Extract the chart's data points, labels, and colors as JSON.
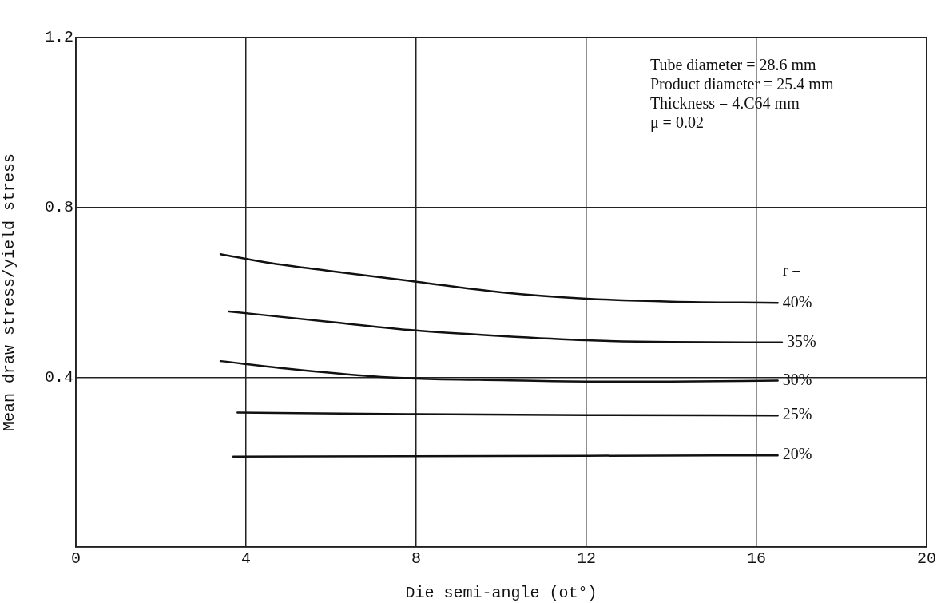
{
  "chart_data": {
    "type": "line",
    "xlabel": "Die semi-angle (ot°)",
    "ylabel": "Mean draw stress/yield stress",
    "xlim": [
      0,
      20
    ],
    "xticks": [
      0,
      4,
      8,
      12,
      16,
      20
    ],
    "ylim": [
      0,
      1.2
    ],
    "yticks": [
      0.4,
      0.8,
      1.2
    ],
    "grid": true,
    "legend": false,
    "marker": "none",
    "line_style": "solid",
    "annotations": [
      "Tube diameter = 28.6 mm",
      "Product diameter = 25.4 mm",
      "Thickness = 4.C64 mm",
      "μ = 0.02",
      "r ="
    ],
    "series": [
      {
        "name": "40%",
        "color": "#111111",
        "x": [
          3.4,
          4.5,
          6,
          8,
          10,
          12,
          14,
          16.5
        ],
        "values": [
          0.69,
          0.67,
          0.65,
          0.625,
          0.6,
          0.585,
          0.578,
          0.575
        ]
      },
      {
        "name": "35%",
        "color": "#111111",
        "x": [
          3.6,
          6,
          8,
          10,
          12,
          14,
          16.6
        ],
        "values": [
          0.555,
          0.53,
          0.51,
          0.497,
          0.487,
          0.483,
          0.482
        ]
      },
      {
        "name": "30%",
        "color": "#111111",
        "x": [
          3.4,
          5,
          7,
          8,
          10,
          12,
          14,
          16.5
        ],
        "values": [
          0.438,
          0.42,
          0.402,
          0.397,
          0.393,
          0.39,
          0.39,
          0.392
        ]
      },
      {
        "name": "25%",
        "color": "#111111",
        "x": [
          3.8,
          8,
          12,
          16.5
        ],
        "values": [
          0.317,
          0.313,
          0.311,
          0.31
        ]
      },
      {
        "name": "20%",
        "color": "#111111",
        "x": [
          3.7,
          8,
          12,
          16.5
        ],
        "values": [
          0.213,
          0.214,
          0.215,
          0.216
        ]
      }
    ]
  }
}
